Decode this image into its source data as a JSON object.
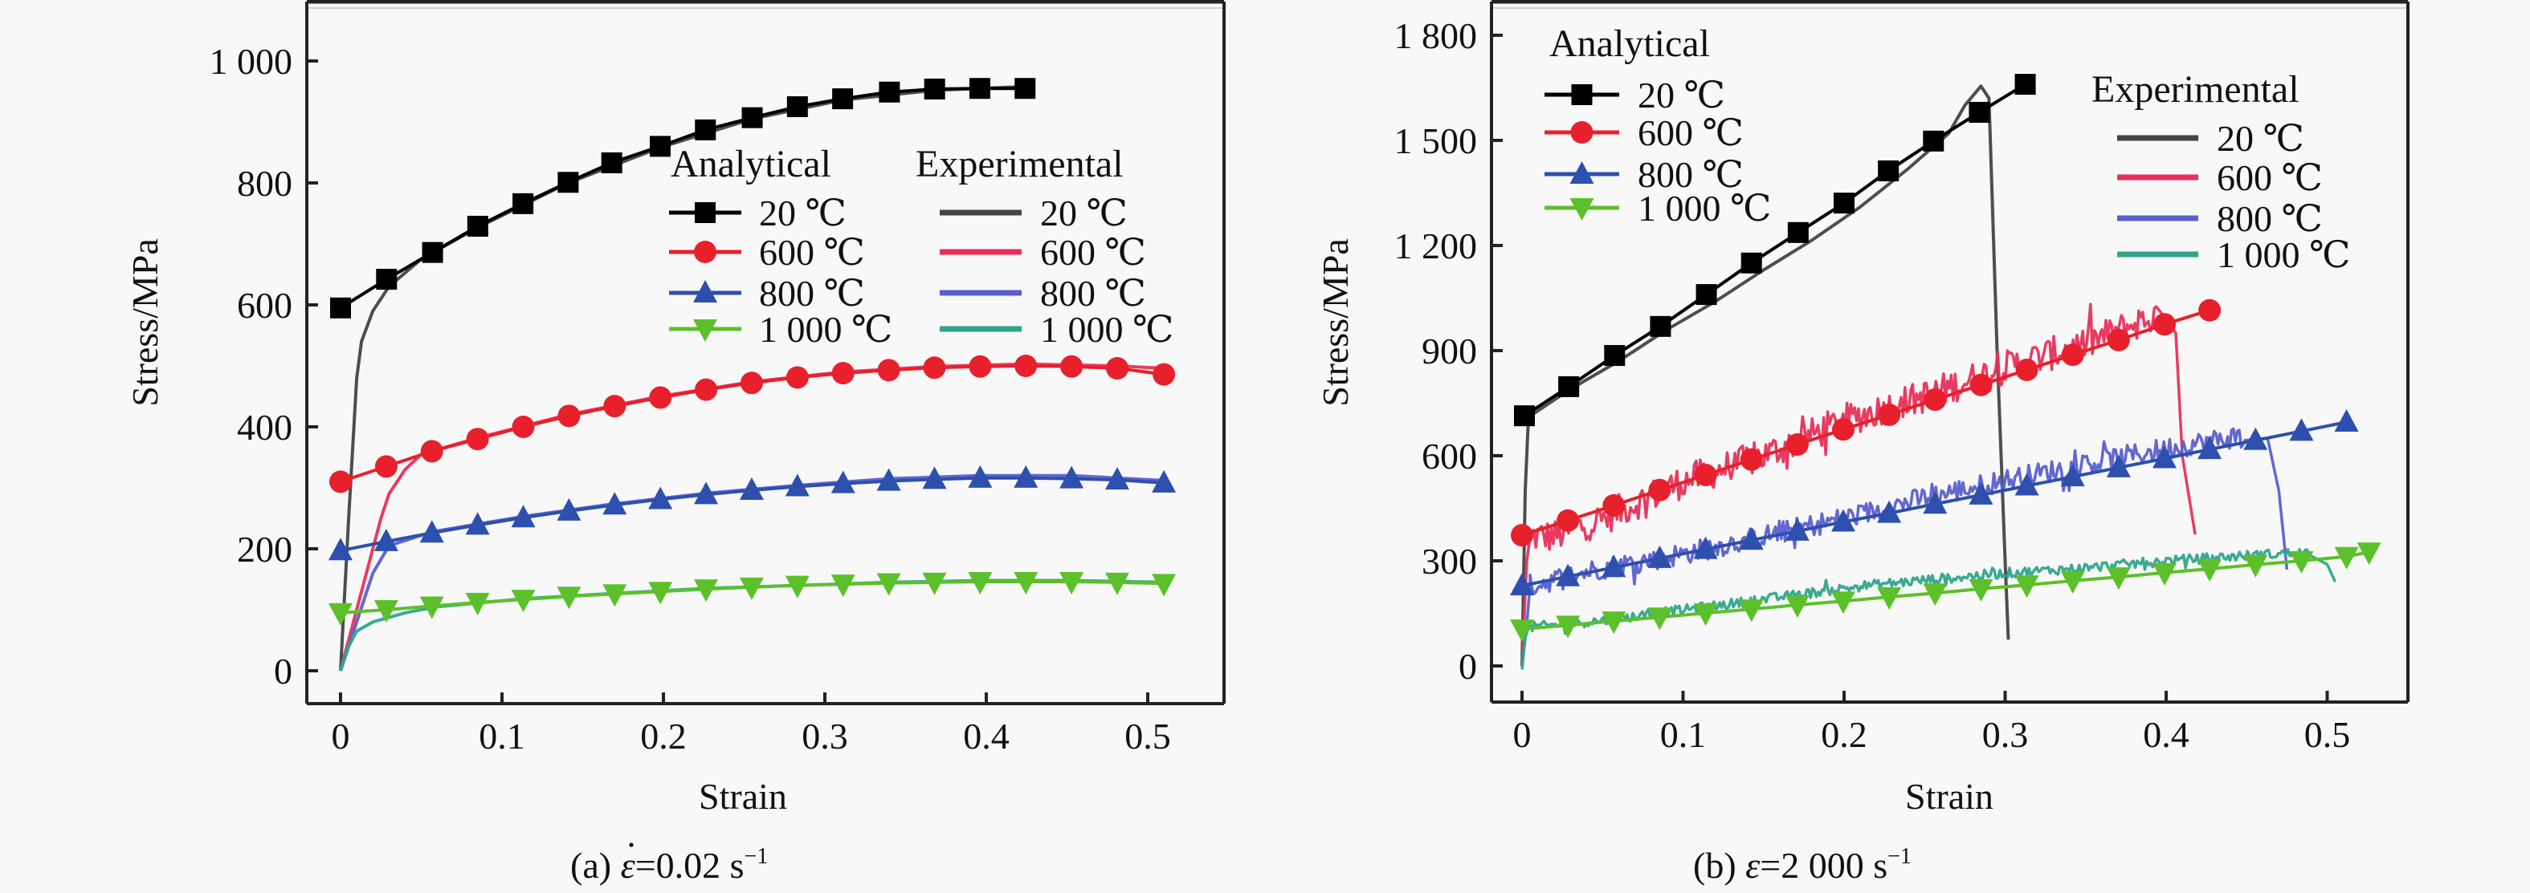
{
  "figure": {
    "panels": [
      {
        "caption": {
          "prefix": "(a) ",
          "symbol": "ε",
          "symbol_dot": true,
          "value": "=0.02 s",
          "sup": "−1"
        }
      },
      {
        "caption": {
          "prefix": "(b) ",
          "symbol": "ε",
          "symbol_dot": false,
          "value": "=2 000 s",
          "sup": "−1"
        }
      }
    ]
  },
  "chart_data": [
    {
      "type": "line",
      "title": "(a) ε̇=0.02 s⁻¹",
      "xlabel": "Strain",
      "ylabel": "Stress/MPa",
      "xlim": [
        -0.02,
        0.55
      ],
      "ylim": [
        -50,
        1100
      ],
      "xticks": [
        0,
        0.1,
        0.2,
        0.3,
        0.4,
        0.5
      ],
      "xtick_labels": [
        "0",
        "0.1",
        "0.2",
        "0.3",
        "0.4",
        "0.5"
      ],
      "yticks": [
        0,
        200,
        400,
        600,
        800,
        1000
      ],
      "ytick_labels": [
        "0",
        "200",
        "400",
        "600",
        "800",
        "1 000"
      ],
      "grid": false,
      "legend": {
        "placement": "center-right",
        "layout": "two-column",
        "analytical_title": "Analytical",
        "experimental_title": "Experimental",
        "entries": [
          "20 ℃",
          "600 ℃",
          "800 ℃",
          "1 000 ℃"
        ]
      },
      "series": [
        {
          "name": "Analytical 20 ℃",
          "group": "analytical",
          "marker": "square",
          "color": "#000000",
          "x": [
            0,
            0.0285,
            0.057,
            0.085,
            0.113,
            0.141,
            0.168,
            0.198,
            0.226,
            0.255,
            0.283,
            0.311,
            0.34,
            0.368,
            0.396,
            0.424
          ],
          "y": [
            595,
            642,
            686,
            729,
            766,
            801,
            833,
            860,
            887,
            907,
            925,
            938,
            949,
            954,
            955,
            955
          ]
        },
        {
          "name": "Analytical 600 ℃",
          "group": "analytical",
          "marker": "circle",
          "color": "#e8202c",
          "x": [
            0,
            0.0283,
            0.0566,
            0.0849,
            0.1132,
            0.1415,
            0.1698,
            0.1981,
            0.2264,
            0.2547,
            0.283,
            0.3113,
            0.3396,
            0.3679,
            0.3962,
            0.4245,
            0.4528,
            0.4811,
            0.51
          ],
          "y": [
            310,
            335,
            360,
            380,
            400,
            418,
            434,
            448,
            461,
            472,
            481,
            488,
            493,
            497,
            499,
            500,
            499,
            496,
            486
          ]
        },
        {
          "name": "Analytical 800 ℃",
          "group": "analytical",
          "marker": "triangle-up",
          "color": "#2d4fae",
          "x": [
            0,
            0.0283,
            0.0566,
            0.0849,
            0.1132,
            0.1415,
            0.1698,
            0.1981,
            0.2264,
            0.2547,
            0.283,
            0.3113,
            0.3396,
            0.3679,
            0.3962,
            0.4245,
            0.4528,
            0.4811,
            0.51
          ],
          "y": [
            197,
            212,
            226,
            239,
            251,
            262,
            272,
            281,
            289,
            296,
            302,
            307,
            311,
            314,
            316,
            316,
            315,
            313,
            308
          ]
        },
        {
          "name": "Analytical 1 000 ℃",
          "group": "analytical",
          "marker": "triangle-down",
          "color": "#5cc02a",
          "x": [
            0,
            0.0283,
            0.0566,
            0.0849,
            0.1132,
            0.1415,
            0.1698,
            0.1981,
            0.2264,
            0.2547,
            0.283,
            0.3113,
            0.3396,
            0.3679,
            0.3962,
            0.4245,
            0.4528,
            0.4811,
            0.51
          ],
          "y": [
            95,
            100,
            106,
            112,
            117,
            122,
            126,
            130,
            134,
            137,
            140,
            142,
            144,
            145,
            146,
            146,
            146,
            145,
            143
          ]
        },
        {
          "name": "Experimental 20 ℃",
          "group": "experimental",
          "color": "#444444",
          "x": [
            0,
            0.005,
            0.01,
            0.013,
            0.02,
            0.03,
            0.05,
            0.085,
            0.141,
            0.198,
            0.255,
            0.311,
            0.368,
            0.424
          ],
          "y": [
            0,
            250,
            480,
            540,
            590,
            630,
            675,
            727,
            800,
            858,
            905,
            936,
            952,
            958
          ]
        },
        {
          "name": "Experimental 600 ℃",
          "group": "experimental",
          "color": "#e8305a",
          "x": [
            0,
            0.015,
            0.025,
            0.03,
            0.04,
            0.05,
            0.085,
            0.141,
            0.198,
            0.255,
            0.311,
            0.368,
            0.424,
            0.481,
            0.51
          ],
          "y": [
            0,
            150,
            250,
            290,
            330,
            355,
            382,
            420,
            450,
            474,
            490,
            499,
            503,
            500,
            496
          ]
        },
        {
          "name": "Experimental 800 ℃",
          "group": "experimental",
          "color": "#5a5fd0",
          "x": [
            0,
            0.01,
            0.02,
            0.03,
            0.057,
            0.113,
            0.17,
            0.226,
            0.283,
            0.34,
            0.396,
            0.453,
            0.51
          ],
          "y": [
            0,
            80,
            160,
            205,
            228,
            253,
            274,
            291,
            304,
            315,
            320,
            320,
            312
          ]
        },
        {
          "name": "Experimental 1 000 ℃",
          "group": "experimental",
          "color": "#2fa58a",
          "x": [
            0,
            0.005,
            0.01,
            0.02,
            0.04,
            0.06,
            0.113,
            0.17,
            0.226,
            0.283,
            0.34,
            0.396,
            0.453,
            0.51
          ],
          "y": [
            0,
            40,
            65,
            80,
            95,
            105,
            118,
            127,
            135,
            140,
            145,
            148,
            148,
            145
          ]
        }
      ]
    },
    {
      "type": "line",
      "title": "(b) ε=2 000 s⁻¹",
      "xlabel": "Strain",
      "ylabel": "Stress/MPa",
      "xlim": [
        -0.02,
        0.55
      ],
      "ylim": [
        -100,
        1900
      ],
      "xticks": [
        0,
        0.1,
        0.2,
        0.3,
        0.4,
        0.5
      ],
      "xtick_labels": [
        "0",
        "0.1",
        "0.2",
        "0.3",
        "0.4",
        "0.5"
      ],
      "yticks": [
        0,
        300,
        600,
        900,
        1200,
        1500,
        1800
      ],
      "ytick_labels": [
        "0",
        "300",
        "600",
        "900",
        "1 200",
        "1 500",
        "1 800"
      ],
      "grid": false,
      "legend": {
        "placement": "top-left (Analytical), top-right (Experimental)",
        "analytical_title": "Analytical",
        "experimental_title": "Experimental",
        "entries": [
          "20 ℃",
          "600 ℃",
          "800 ℃",
          "1 000 ℃"
        ]
      },
      "series": [
        {
          "name": "Analytical 20 ℃",
          "group": "analytical",
          "marker": "square",
          "color": "#000000",
          "x": [
            0.0015,
            0.029,
            0.0575,
            0.086,
            0.1145,
            0.1425,
            0.1715,
            0.2,
            0.2275,
            0.2555,
            0.284,
            0.3125
          ],
          "y": [
            714,
            797,
            886,
            969,
            1060,
            1150,
            1237,
            1321,
            1413,
            1498,
            1580,
            1660
          ]
        },
        {
          "name": "Analytical 600 ℃",
          "group": "analytical",
          "marker": "circle",
          "color": "#e8202c",
          "x": [
            0,
            0.0285,
            0.057,
            0.0855,
            0.114,
            0.1425,
            0.171,
            0.1995,
            0.228,
            0.2565,
            0.285,
            0.3135,
            0.342,
            0.3705,
            0.399,
            0.427
          ],
          "y": [
            373,
            415,
            458,
            502,
            545,
            589,
            632,
            675,
            717,
            760,
            802,
            845,
            888,
            930,
            975,
            1015
          ]
        },
        {
          "name": "Analytical 800 ℃",
          "group": "analytical",
          "marker": "triangle-up",
          "color": "#2d4fae",
          "x": [
            0,
            0.0285,
            0.057,
            0.0855,
            0.114,
            0.1425,
            0.171,
            0.1995,
            0.228,
            0.2565,
            0.285,
            0.3135,
            0.342,
            0.3705,
            0.399,
            0.427,
            0.4555,
            0.484,
            0.512
          ],
          "y": [
            229,
            255,
            281,
            307,
            333,
            359,
            385,
            411,
            436,
            462,
            488,
            514,
            540,
            566,
            592,
            618,
            644,
            670,
            696
          ]
        },
        {
          "name": "Analytical 1 000 ℃",
          "group": "analytical",
          "marker": "triangle-down",
          "color": "#5cc02a",
          "x": [
            0,
            0.0285,
            0.057,
            0.0855,
            0.114,
            0.1425,
            0.171,
            0.1995,
            0.228,
            0.2565,
            0.285,
            0.3135,
            0.342,
            0.3705,
            0.399,
            0.427,
            0.4555,
            0.484,
            0.512,
            0.526
          ],
          "y": [
            105,
            116,
            128,
            139,
            151,
            162,
            174,
            185,
            197,
            208,
            220,
            231,
            243,
            254,
            266,
            277,
            289,
            300,
            312,
            325
          ]
        },
        {
          "name": "Experimental 20 ℃",
          "group": "experimental",
          "color": "#444444",
          "x": [
            0,
            0.002,
            0.004,
            0.03,
            0.06,
            0.09,
            0.12,
            0.15,
            0.18,
            0.21,
            0.24,
            0.265,
            0.275,
            0.285,
            0.29,
            0.295,
            0.3,
            0.302
          ],
          "y": [
            0,
            500,
            710,
            790,
            870,
            960,
            1040,
            1130,
            1215,
            1310,
            1420,
            1520,
            1600,
            1655,
            1620,
            900,
            300,
            75
          ]
        },
        {
          "name": "Experimental 600 ℃",
          "group": "experimental",
          "color": "#e8305a",
          "noisy": true,
          "x": [
            0,
            0.003,
            0.005,
            0.02,
            0.05,
            0.1,
            0.15,
            0.2,
            0.25,
            0.3,
            0.35,
            0.394,
            0.4,
            0.406,
            0.41,
            0.418
          ],
          "y": [
            0,
            300,
            370,
            370,
            420,
            527,
            600,
            700,
            770,
            852,
            920,
            1000,
            990,
            950,
            600,
            375
          ]
        },
        {
          "name": "Experimental 800 ℃",
          "group": "experimental",
          "color": "#5a5fd0",
          "noisy": true,
          "x": [
            0,
            0.003,
            0.005,
            0.05,
            0.1,
            0.15,
            0.2125,
            0.25,
            0.3,
            0.35,
            0.4,
            0.45,
            0.463,
            0.47,
            0.475
          ],
          "y": [
            0,
            120,
            230,
            280,
            320,
            370,
            435,
            480,
            530,
            575,
            620,
            660,
            650,
            500,
            275
          ]
        },
        {
          "name": "Experimental 1 000 ℃",
          "group": "experimental",
          "color": "#2fa58a",
          "noisy": true,
          "x": [
            0,
            0.002,
            0.004,
            0.05,
            0.1,
            0.15,
            0.2125,
            0.25,
            0.3,
            0.35,
            0.4,
            0.45,
            0.49,
            0.5,
            0.505
          ],
          "y": [
            -10,
            80,
            110,
            130,
            160,
            190,
            229,
            245,
            265,
            280,
            300,
            315,
            325,
            290,
            240
          ]
        }
      ]
    }
  ]
}
